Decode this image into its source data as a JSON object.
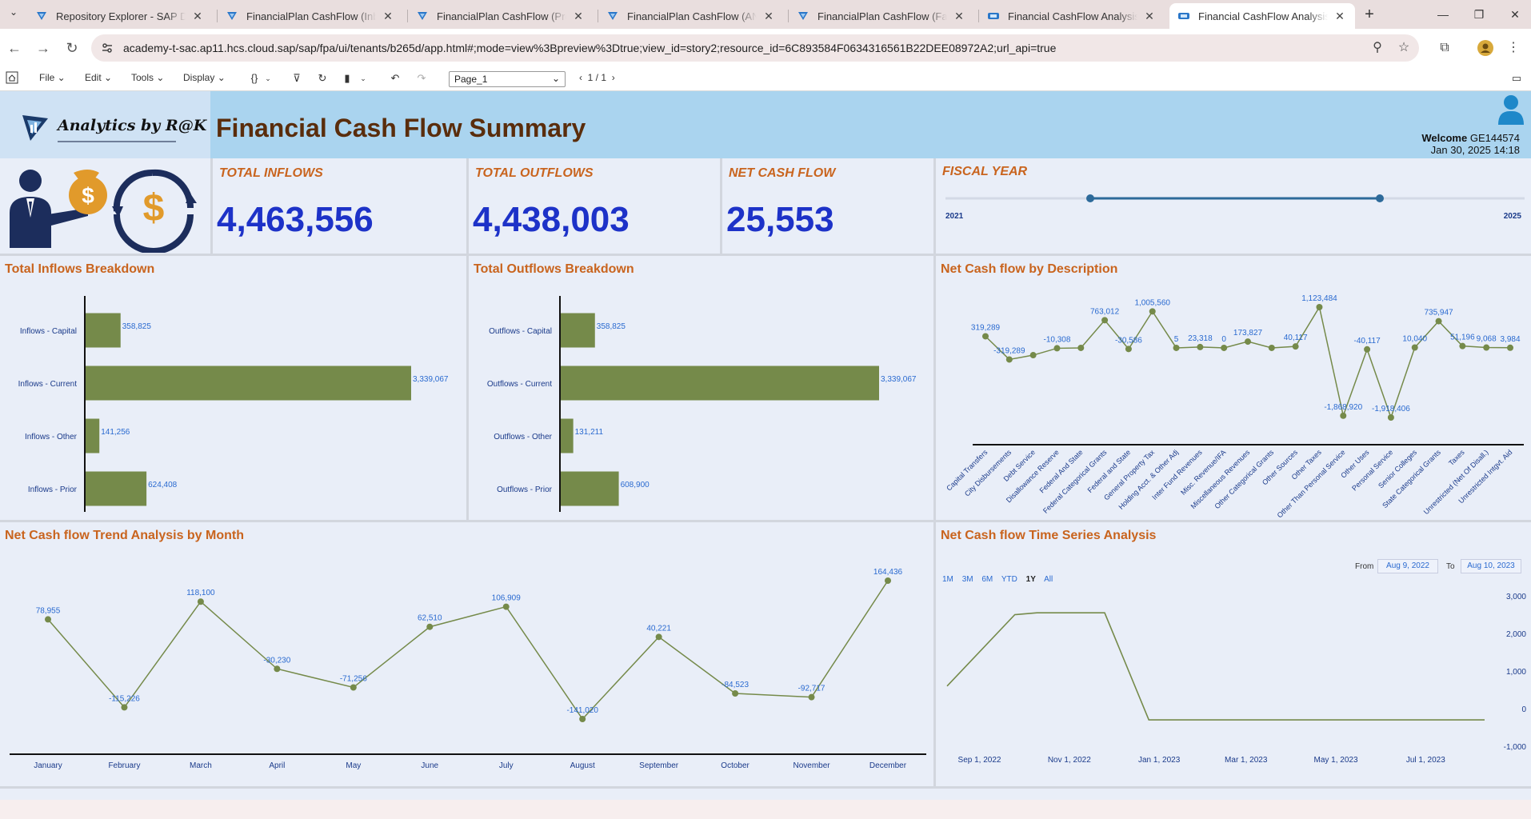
{
  "browser": {
    "tabs": [
      {
        "title": "Repository Explorer - SAP Datasphere",
        "active": false
      },
      {
        "title": "FinancialPlan CashFlow (Inbound)",
        "active": false
      },
      {
        "title": "FinancialPlan CashFlow (Propagation)",
        "active": false
      },
      {
        "title": "FinancialPlan CashFlow (ANA) (Fact)",
        "active": false
      },
      {
        "title": "FinancialPlan CashFlow (Fact) (View)",
        "active": false
      },
      {
        "title": "Financial CashFlow Analysis - SAP",
        "active": false
      },
      {
        "title": "Financial CashFlow Analysis - SAP",
        "active": true
      }
    ],
    "new_tab": "+",
    "url": "academy-t-sac.ap11.hcs.cloud.sap/sap/fpa/ui/tenants/b265d/app.html#;mode=view%3Bpreview%3Dtrue;view_id=story2;resource_id=6C893584F0634316561B22DEE08972A2;url_api=true"
  },
  "toolbar": {
    "file": "File",
    "edit": "Edit",
    "tools": "Tools",
    "display": "Display",
    "page_select": "Page_1",
    "pager": "1 / 1"
  },
  "header": {
    "logo_text": "Analytics by R@K",
    "title": "Financial Cash Flow Summary",
    "welcome_label": "Welcome",
    "user": "GE144574",
    "datetime": "Jan 30, 2025 14:18"
  },
  "kpis": {
    "total_inflows": {
      "label": "TOTAL INFLOWS",
      "value": "4,463,556"
    },
    "total_outflows": {
      "label": "TOTAL OUTFLOWS",
      "value": "4,438,003"
    },
    "net_cash_flow": {
      "label": "NET CASH FLOW",
      "value": "25,553"
    }
  },
  "fiscal_year": {
    "label": "FISCAL YEAR",
    "min": "2021",
    "max": "2025",
    "range_start": 2022,
    "range_end": 2024
  },
  "chart_data": [
    {
      "id": "inflows",
      "type": "bar",
      "title": "Total Inflows Breakdown",
      "categories": [
        "Inflows - Capital",
        "Inflows - Current",
        "Inflows - Other",
        "Inflows - Prior"
      ],
      "values": [
        358825,
        3339067,
        141256,
        624408
      ],
      "labels": [
        "358,825",
        "3,339,067",
        "141,256",
        "624,408"
      ],
      "orientation": "horizontal",
      "color": "#758a4a"
    },
    {
      "id": "outflows",
      "type": "bar",
      "title": "Total Outflows Breakdown",
      "categories": [
        "Outflows - Capital",
        "Outflows - Current",
        "Outflows - Other",
        "Outflows - Prior"
      ],
      "values": [
        358825,
        3339067,
        131211,
        608900
      ],
      "labels": [
        "358,825",
        "3,339,067",
        "131,211",
        "608,900"
      ],
      "orientation": "horizontal",
      "color": "#758a4a"
    },
    {
      "id": "description",
      "type": "line",
      "title": "Net Cash flow by Description",
      "categories": [
        "Capital Transfers",
        "City Disbursements",
        "Debt Service",
        "Disallowance Reserve",
        "Federal And State",
        "Federal Categorical Grants",
        "Federal and State",
        "General Property Tax",
        "Holding Acct. & Other Adj",
        "Inter Fund Revenues",
        "Misc. Revenue/IFA",
        "Miscellaneous Revenues",
        "Other Categorical Grants",
        "Other Sources",
        "Other Taxes",
        "Other Than Personal Service",
        "Other Uses",
        "Personal Service",
        "Senior Colleges",
        "State Categorical Grants",
        "Taxes",
        "Unrestricted (Net Of Disall.)",
        "Unrestricted Intgvt. Aid"
      ],
      "values": [
        319289,
        -319289,
        -200000,
        -10308,
        0,
        763012,
        -30586,
        1005560,
        5,
        23318,
        0,
        173827,
        0,
        40117,
        1123484,
        -1868920,
        -40117,
        -1918406,
        10040,
        735947,
        51196,
        9068,
        3984
      ],
      "labels": [
        "319,289",
        "-319,289",
        "",
        "-10,308",
        "",
        "763,012",
        "-30,586",
        "1,005,560",
        "5",
        "23,318",
        "0",
        "173,827",
        "",
        "40,117",
        "1,123,484",
        "-1,868,920",
        "-40,117",
        "-1,918,406",
        "10,040",
        "735,947",
        "51,196",
        "9,068",
        "3,984"
      ],
      "color": "#758a4a"
    },
    {
      "id": "monthly",
      "type": "line",
      "title": "Net Cash flow Trend Analysis by Month",
      "categories": [
        "January",
        "February",
        "March",
        "April",
        "May",
        "June",
        "July",
        "August",
        "September",
        "October",
        "November",
        "December"
      ],
      "values": [
        78955,
        -115226,
        118100,
        -30230,
        -71256,
        62510,
        106909,
        -141020,
        40221,
        -84523,
        -92717,
        164436
      ],
      "labels": [
        "78,955",
        "-115,226",
        "118,100",
        "-30,230",
        "-71,256",
        "62,510",
        "106,909",
        "-141,020",
        "40,221",
        "-84,523",
        "-92,717",
        "164,436"
      ],
      "color": "#758a4a"
    },
    {
      "id": "timeseries",
      "type": "line",
      "title": "Net Cash flow Time Series Analysis",
      "x": [
        "2022-08-10",
        "2022-09-25",
        "2022-10-10",
        "2022-11-25",
        "2022-12-25",
        "2023-08-10"
      ],
      "values": [
        600,
        2500,
        2550,
        2550,
        -300,
        -300
      ],
      "x_ticks": [
        "Sep 1, 2022",
        "Nov 1, 2022",
        "Jan 1, 2023",
        "Mar 1, 2023",
        "May 1, 2023",
        "Jul 1, 2023"
      ],
      "y_ticks": [
        "3,000",
        "2,000",
        "1,000",
        "0",
        "-1,000"
      ],
      "ylim": [
        -1000,
        3000
      ],
      "range_buttons": [
        "1M",
        "3M",
        "6M",
        "YTD",
        "1Y",
        "All"
      ],
      "selected_range": "1Y",
      "from_label": "From",
      "to_label": "To",
      "from": "Aug 9, 2022",
      "to": "Aug 10, 2023",
      "color": "#758a4a"
    }
  ]
}
